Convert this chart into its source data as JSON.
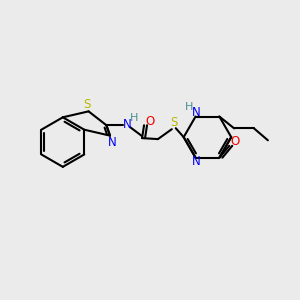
{
  "bg_color": "#ebebeb",
  "atom_colors": {
    "S": "#b8b800",
    "N": "#0000ee",
    "O": "#ee0000",
    "H": "#4a9090",
    "C": "#000000"
  },
  "figure_size": [
    3.0,
    3.0
  ],
  "dpi": 100
}
